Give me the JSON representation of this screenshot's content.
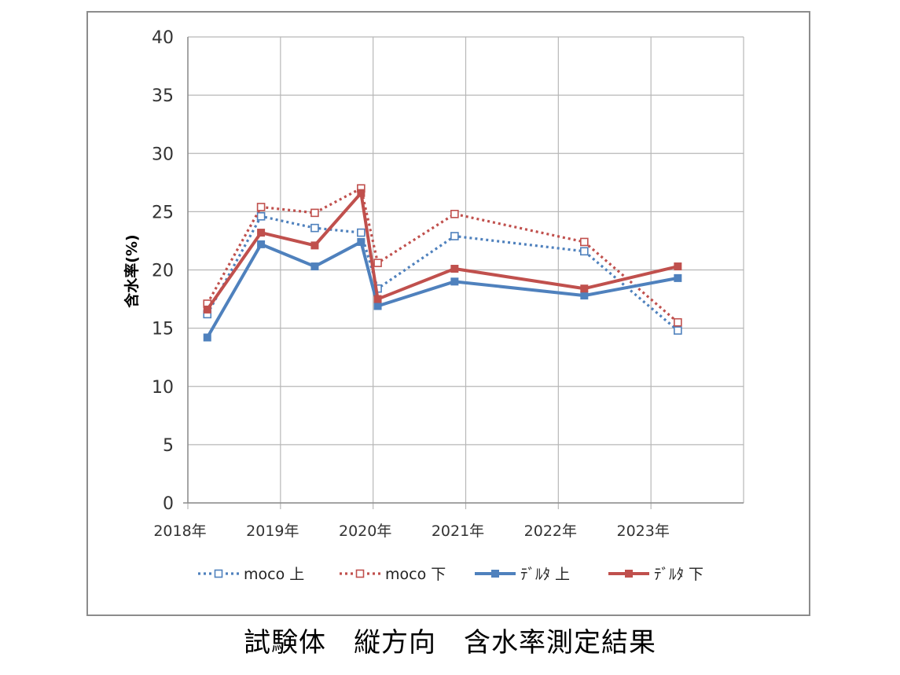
{
  "caption": "試験体　縦方向　含水率測定結果",
  "chart_data": {
    "type": "line",
    "ylabel": "含水率(%)",
    "xlabel": "",
    "ylim": [
      0,
      40
    ],
    "yticks": [
      0,
      5,
      10,
      15,
      20,
      25,
      30,
      35,
      40
    ],
    "xticks": [
      "2018年",
      "2019年",
      "2020年",
      "2021年",
      "2022年",
      "2023年"
    ],
    "xlim": [
      2018.0,
      2024.0
    ],
    "grid": true,
    "legend_position": "bottom",
    "series": [
      {
        "name": "moco 上",
        "color": "#4f81bd",
        "style": "dotted",
        "marker": "hollow-square",
        "points": [
          [
            2018.21,
            16.2
          ],
          [
            2018.79,
            24.6
          ],
          [
            2019.37,
            23.6
          ],
          [
            2019.87,
            23.2
          ],
          [
            2020.05,
            18.4
          ],
          [
            2020.88,
            22.9
          ],
          [
            2022.28,
            21.6
          ],
          [
            2023.29,
            14.8
          ]
        ]
      },
      {
        "name": "moco 下",
        "color": "#c0504d",
        "style": "dotted",
        "marker": "hollow-square",
        "points": [
          [
            2018.21,
            17.1
          ],
          [
            2018.79,
            25.4
          ],
          [
            2019.37,
            24.9
          ],
          [
            2019.87,
            27.0
          ],
          [
            2020.05,
            20.6
          ],
          [
            2020.88,
            24.8
          ],
          [
            2022.28,
            22.4
          ],
          [
            2023.29,
            15.5
          ]
        ]
      },
      {
        "name": "ﾃﾞﾙﾀ 上",
        "color": "#4f81bd",
        "style": "solid",
        "marker": "filled-square",
        "points": [
          [
            2018.21,
            14.2
          ],
          [
            2018.79,
            22.2
          ],
          [
            2019.37,
            20.3
          ],
          [
            2019.87,
            22.4
          ],
          [
            2020.05,
            16.9
          ],
          [
            2020.88,
            19.0
          ],
          [
            2022.28,
            17.8
          ],
          [
            2023.29,
            19.3
          ]
        ]
      },
      {
        "name": "ﾃﾞﾙﾀ 下",
        "color": "#c0504d",
        "style": "solid",
        "marker": "filled-square",
        "points": [
          [
            2018.21,
            16.6
          ],
          [
            2018.79,
            23.2
          ],
          [
            2019.37,
            22.1
          ],
          [
            2019.87,
            26.6
          ],
          [
            2020.05,
            17.5
          ],
          [
            2020.88,
            20.1
          ],
          [
            2022.28,
            18.4
          ],
          [
            2023.29,
            20.3
          ]
        ]
      }
    ]
  }
}
